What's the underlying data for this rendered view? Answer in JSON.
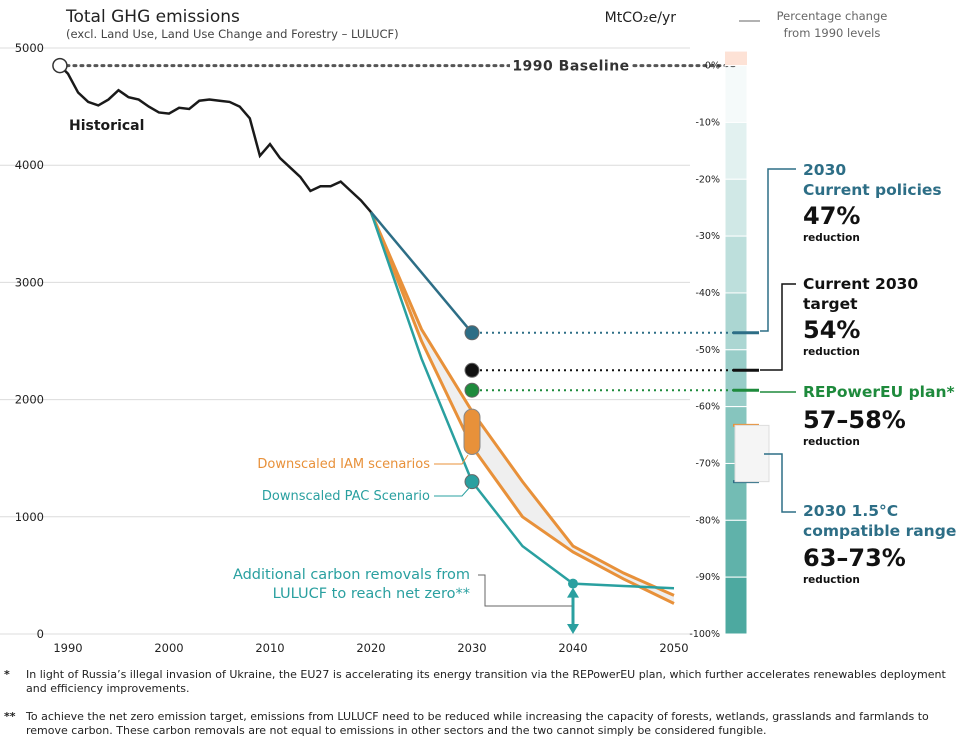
{
  "chart_data": {
    "type": "line",
    "title": "Total GHG emissions",
    "subtitle": "(excl. Land Use, Land Use Change and Forestry – LULUCF)",
    "ylabel": "MtCO₂e/yr",
    "xlim": [
      1989,
      2051
    ],
    "ylim": [
      0,
      5000
    ],
    "x_ticks": [
      1990,
      2000,
      2010,
      2020,
      2030,
      2040,
      2050
    ],
    "y_ticks": [
      0,
      1000,
      2000,
      3000,
      4000,
      5000
    ],
    "baseline": {
      "label": "1990 Baseline",
      "value": 4850,
      "year": 1989.2
    },
    "historical": {
      "label": "Historical",
      "x": [
        1989.2,
        1990,
        1991,
        1992,
        1993,
        1994,
        1995,
        1996,
        1997,
        1998,
        1999,
        2000,
        2001,
        2002,
        2003,
        2004,
        2005,
        2006,
        2007,
        2008,
        2009,
        2010,
        2011,
        2012,
        2013,
        2014,
        2015,
        2016,
        2017,
        2018,
        2019,
        2020
      ],
      "y": [
        4850,
        4780,
        4620,
        4540,
        4510,
        4560,
        4640,
        4580,
        4560,
        4500,
        4450,
        4440,
        4490,
        4480,
        4550,
        4560,
        4550,
        4540,
        4500,
        4400,
        4080,
        4180,
        4060,
        3980,
        3900,
        3780,
        3820,
        3820,
        3860,
        3780,
        3700,
        3600
      ]
    },
    "iam_band": {
      "label": "Downscaled IAM scenarios",
      "x": [
        2020,
        2025,
        2030,
        2035,
        2040,
        2045,
        2050
      ],
      "upper": [
        3600,
        2600,
        1900,
        1300,
        750,
        520,
        330
      ],
      "lower": [
        3600,
        2500,
        1600,
        1000,
        700,
        470,
        260
      ]
    },
    "pac_line": {
      "label": "Downscaled PAC Scenario",
      "x": [
        2020,
        2025,
        2030,
        2035,
        2040,
        2045,
        2050
      ],
      "y": [
        3600,
        2350,
        1300,
        750,
        430,
        410,
        390
      ]
    },
    "current_policies_line": {
      "x": [
        2020,
        2030
      ],
      "y": [
        3600,
        2570
      ]
    },
    "points_2030": [
      {
        "name": "current-policies",
        "y": 2570,
        "color": "#2d6e86"
      },
      {
        "name": "current-target",
        "y": 2250,
        "color": "#111111"
      },
      {
        "name": "repowereu",
        "y": 2080,
        "color": "#1e8a3c"
      },
      {
        "name": "pac",
        "y": 1300,
        "color": "#2aa0a0"
      }
    ],
    "iam_range_2030": [
      1600,
      1850
    ],
    "removals_point": {
      "x": 2040,
      "y": 430
    },
    "pct_scale": {
      "header": "Percentage change\nfrom 1990 levels",
      "labels": [
        "0%",
        "-10%",
        "-20%",
        "-30%",
        "-40%",
        "-50%",
        "-60%",
        "-70%",
        "-80%",
        "-90%",
        "-100%"
      ]
    }
  },
  "labels": {
    "historical": "Historical",
    "baseline": "1990 Baseline",
    "iam": "Downscaled IAM scenarios",
    "pac": "Downscaled PAC Scenario",
    "removals_line1": "Additional carbon removals from",
    "removals_line2": "LULUCF to reach net zero**"
  },
  "callouts": {
    "current_policies": {
      "line1": "2030",
      "line2": "Current policies",
      "pct": "47%",
      "sub": "reduction"
    },
    "current_target": {
      "line1": "Current 2030",
      "line2": "target",
      "pct": "54%",
      "sub": "reduction"
    },
    "repowereu": {
      "line1": "REPowerEU plan*",
      "pct": "57–58%",
      "sub": "reduction"
    },
    "compatible": {
      "line1": "2030 1.5°C",
      "line2": "compatible range",
      "pct": "63–73%",
      "sub": "reduction"
    }
  },
  "colors": {
    "historical": "#1a1a1a",
    "iam": "#e8913a",
    "pac": "#2aa0a0",
    "policies": "#2d6e86",
    "repower": "#1e8a3c",
    "band_fill": "#efefef"
  },
  "footnotes": {
    "one_mark": "*",
    "one": "In light of Russia’s illegal invasion of Ukraine, the EU27 is accelerating its energy transition via the REPowerEU plan, which further accelerates renewables deployment and efficiency improvements.",
    "two_mark": "**",
    "two": "To achieve the net zero emission target, emissions from LULUCF need to be reduced while increasing the capacity of forests, wetlands, grasslands and farmlands to remove carbon. These carbon removals are not equal to emissions in other sectors and the two cannot simply be considered fungible."
  }
}
